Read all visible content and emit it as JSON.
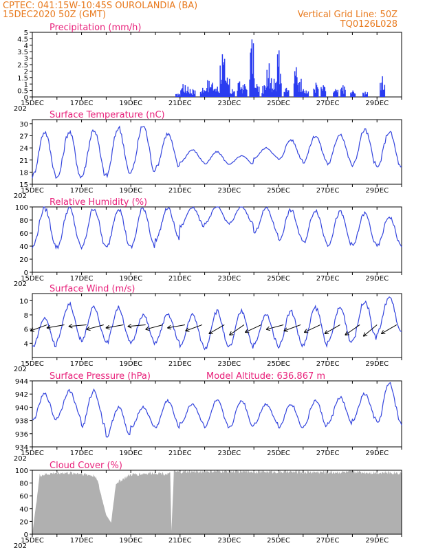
{
  "header": {
    "line1_left": "CPTEC:   041:15W-10:45S   OUROLANDIA (BA)",
    "line2_left": "15DEC2020 50Z (GMT)",
    "line2_right": "Vertical Grid Line: 50Z",
    "line3_right": "TQ0126L028"
  },
  "x_ticks": [
    "15DEC",
    "17DEC",
    "19DEC",
    "21DEC",
    "23DEC",
    "25DEC",
    "27DEC",
    "29DEC"
  ],
  "x_year_label": "202",
  "colors": {
    "header": "#e87a1e",
    "title": "#e8207a",
    "line": "#3344dd",
    "bar": "#2a3cf0",
    "cloud": "#b0b0b0"
  },
  "chart_data": [
    {
      "type": "bar",
      "title": "Precipitation (mm/h)",
      "ylim": [
        0,
        5
      ],
      "yticks": [
        "0",
        "0.5",
        "1",
        "1.5",
        "2",
        "2.5",
        "3",
        "3.5",
        "4",
        "4.5",
        "5"
      ],
      "x_range_days": [
        0,
        15
      ],
      "values_by_day": [
        {
          "day": 5.9,
          "v": 0.25
        },
        {
          "day": 6.1,
          "v": 1.0
        },
        {
          "day": 6.3,
          "v": 0.8
        },
        {
          "day": 6.5,
          "v": 0.6
        },
        {
          "day": 6.9,
          "v": 0.7
        },
        {
          "day": 7.1,
          "v": 1.3
        },
        {
          "day": 7.3,
          "v": 1.1
        },
        {
          "day": 7.5,
          "v": 0.8
        },
        {
          "day": 7.7,
          "v": 3.3
        },
        {
          "day": 7.9,
          "v": 1.5
        },
        {
          "day": 8.1,
          "v": 0.6
        },
        {
          "day": 8.4,
          "v": 1.2
        },
        {
          "day": 8.6,
          "v": 1.0
        },
        {
          "day": 8.9,
          "v": 4.45
        },
        {
          "day": 9.1,
          "v": 1.0
        },
        {
          "day": 9.4,
          "v": 0.9
        },
        {
          "day": 9.6,
          "v": 2.6
        },
        {
          "day": 9.8,
          "v": 1.4
        },
        {
          "day": 10.0,
          "v": 3.6
        },
        {
          "day": 10.3,
          "v": 0.7
        },
        {
          "day": 10.7,
          "v": 2.3
        },
        {
          "day": 10.9,
          "v": 1.4
        },
        {
          "day": 11.1,
          "v": 0.5
        },
        {
          "day": 11.5,
          "v": 1.1
        },
        {
          "day": 11.8,
          "v": 0.9
        },
        {
          "day": 12.3,
          "v": 0.6
        },
        {
          "day": 12.6,
          "v": 0.9
        },
        {
          "day": 13.0,
          "v": 0.5
        },
        {
          "day": 13.5,
          "v": 0.4
        },
        {
          "day": 14.2,
          "v": 1.6
        }
      ]
    },
    {
      "type": "line",
      "title": "Surface Temperature (nC)",
      "ylim": [
        15,
        31
      ],
      "yticks": [
        "15",
        "18",
        "21",
        "24",
        "27",
        "30"
      ],
      "x_range_days": [
        0,
        15
      ],
      "daily_min": [
        17,
        16.5,
        17,
        17,
        18,
        19,
        20.5,
        20,
        20,
        21.5,
        21,
        20.5,
        20,
        19.5,
        19
      ],
      "daily_max": [
        28,
        28,
        28.5,
        29,
        29.5,
        27.5,
        23.5,
        23,
        22,
        24,
        26,
        27,
        27.5,
        28.5,
        28
      ]
    },
    {
      "type": "line",
      "title": "Relative Humidity (%)",
      "ylim": [
        0,
        100
      ],
      "yticks": [
        "0",
        "20",
        "40",
        "60",
        "80",
        "100"
      ],
      "x_range_days": [
        0,
        15
      ],
      "daily_min": [
        38,
        38,
        38,
        37,
        38,
        50,
        70,
        75,
        75,
        60,
        48,
        45,
        42,
        40,
        40
      ],
      "daily_max": [
        98,
        98,
        98,
        98,
        98,
        98,
        100,
        100,
        100,
        98,
        95,
        95,
        92,
        90,
        85
      ]
    },
    {
      "type": "line",
      "title": "Surface Wind (m/s)",
      "ylim": [
        2,
        11
      ],
      "yticks": [
        "4",
        "6",
        "8",
        "10"
      ],
      "x_range_days": [
        0,
        15
      ],
      "daily_min": [
        3.5,
        4.5,
        4.5,
        4.0,
        4.0,
        4.2,
        3.5,
        3.2,
        3.5,
        3.8,
        3.6,
        3.8,
        4.0,
        4.5,
        5.5
      ],
      "daily_max": [
        7.5,
        9.5,
        9.0,
        9.0,
        8.0,
        8.0,
        8.0,
        8.5,
        8.5,
        8.0,
        8.5,
        9.0,
        9.0,
        10.0,
        10.5
      ],
      "vector_days": [
        0.6,
        1.3,
        2.2,
        2.9,
        3.7,
        4.6,
        5.3,
        6.2,
        6.9,
        7.8,
        8.6,
        9.3,
        10.2,
        10.9,
        11.7,
        12.5,
        13.3,
        14.0,
        14.8
      ],
      "vector_angles_deg": [
        200,
        190,
        185,
        195,
        190,
        185,
        195,
        190,
        200,
        210,
        215,
        205,
        195,
        200,
        205,
        210,
        215,
        220,
        210
      ]
    },
    {
      "type": "line",
      "title": "Surface Pressure (hPa)",
      "annotation": "Model Altitude: 636.867 m",
      "ylim": [
        934,
        944
      ],
      "yticks": [
        "934",
        "936",
        "938",
        "940",
        "942",
        "944"
      ],
      "x_range_days": [
        0,
        15
      ],
      "daily_min": [
        938,
        938.5,
        937,
        935.5,
        937,
        937,
        937.5,
        937,
        937,
        937.5,
        937,
        937,
        937.5,
        938,
        937.5
      ],
      "daily_max": [
        942,
        942.5,
        942.5,
        940,
        940,
        941,
        940.5,
        941,
        941,
        940.5,
        940.5,
        941,
        941.5,
        942,
        943.5
      ]
    },
    {
      "type": "area",
      "title": "Cloud Cover (%)",
      "ylim": [
        0,
        100
      ],
      "yticks": [
        "0",
        "20",
        "40",
        "60",
        "80",
        "100"
      ],
      "x_range_days": [
        0,
        15
      ],
      "note": "mostly 90-100% with a dip near 17.5DEC (~20%) and a gap near 20DEC",
      "values_by_day": [
        {
          "day": 0.0,
          "v": 0
        },
        {
          "day": 0.3,
          "v": 92
        },
        {
          "day": 1.0,
          "v": 96
        },
        {
          "day": 2.0,
          "v": 95
        },
        {
          "day": 2.6,
          "v": 90
        },
        {
          "day": 3.0,
          "v": 30
        },
        {
          "day": 3.2,
          "v": 18
        },
        {
          "day": 3.4,
          "v": 80
        },
        {
          "day": 4.0,
          "v": 93
        },
        {
          "day": 5.0,
          "v": 96
        },
        {
          "day": 5.6,
          "v": 94
        },
        {
          "day": 5.65,
          "v": 5
        },
        {
          "day": 5.75,
          "v": 97
        },
        {
          "day": 7.0,
          "v": 98
        },
        {
          "day": 9.0,
          "v": 98
        },
        {
          "day": 11.0,
          "v": 97
        },
        {
          "day": 13.0,
          "v": 97
        },
        {
          "day": 15.0,
          "v": 96
        }
      ]
    }
  ]
}
